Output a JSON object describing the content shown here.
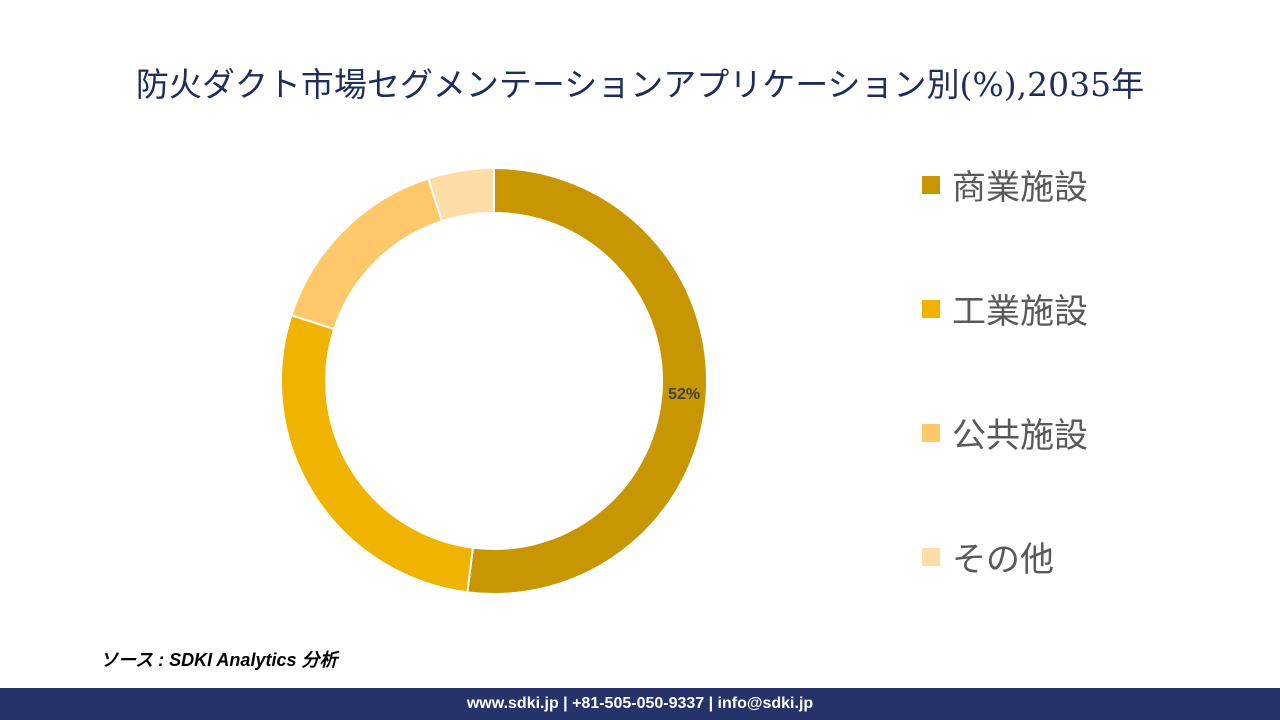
{
  "title": "防火ダクト市場セグメンテーションアプリケーション別(%),2035年",
  "chart_data": {
    "type": "pie",
    "subtype": "donut",
    "title": "防火ダクト市場セグメンテーションアプリケーション別(%),2035年",
    "categories": [
      "商業施設",
      "工業施設",
      "公共施設",
      "その他"
    ],
    "values": [
      52,
      28,
      15,
      5
    ],
    "colors": [
      "#C89600",
      "#F0B400",
      "#FFC96B",
      "#FFDDA8"
    ],
    "data_labels": [
      "52%",
      "",
      "",
      ""
    ],
    "legend_position": "right"
  },
  "source": "ソース : SDKI Analytics 分析",
  "footer": "www.sdki.jp | +81-505-050-9337 | info@sdki.jp"
}
